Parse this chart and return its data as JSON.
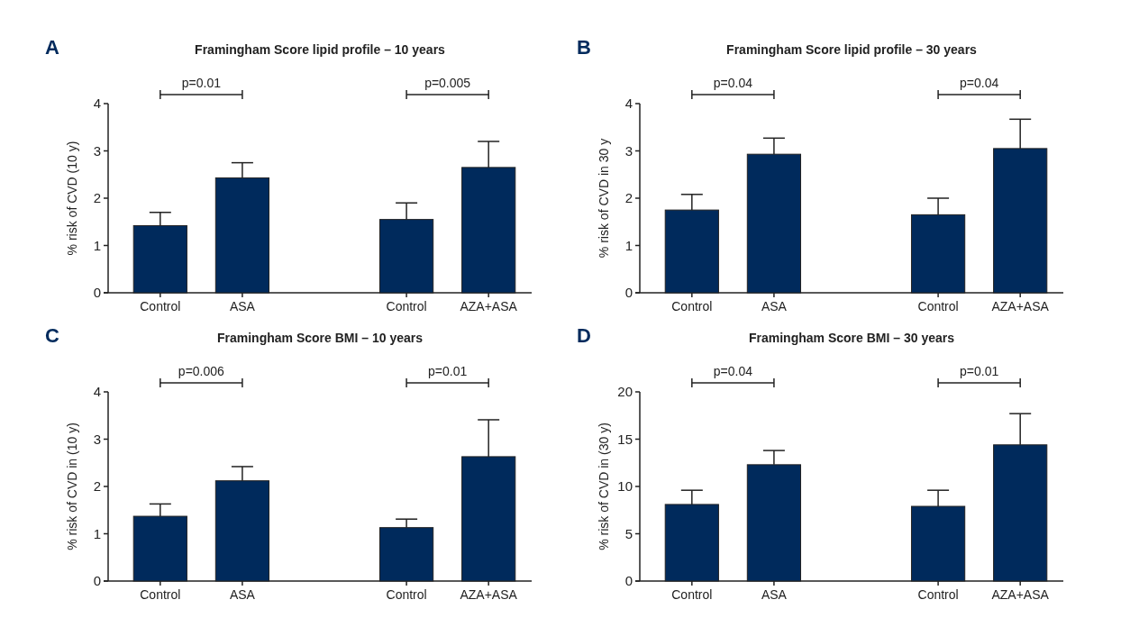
{
  "chart_data": [
    {
      "type": "bar",
      "title": "Framingham Score lipid profile – 10 years",
      "ylabel": "% risk of CVD (10 y)",
      "categories": [
        "Control",
        "ASA",
        null,
        "Control",
        "AZA+ASA"
      ],
      "values": [
        1.42,
        2.43,
        null,
        1.55,
        2.65
      ],
      "errors": [
        [
          1.42,
          1.7
        ],
        [
          2.43,
          2.75
        ],
        null,
        [
          1.55,
          1.9
        ],
        [
          2.65,
          3.2
        ]
      ],
      "color": "#002a5c",
      "ylim": [
        0,
        4
      ],
      "yticks": [
        0,
        1,
        2,
        3,
        4
      ],
      "annotations": [
        "A",
        "p=0.01",
        "p=0.005"
      ]
    },
    {
      "type": "bar",
      "title": "Framingham Score lipid profile – 30 years",
      "ylabel": "% risk of CVD in 30 y",
      "categories": [
        "Control",
        "ASA",
        null,
        "Control",
        "AZA+ASA"
      ],
      "values": [
        1.75,
        2.93,
        null,
        1.65,
        3.05
      ],
      "errors": [
        [
          1.75,
          2.08
        ],
        [
          2.93,
          3.27
        ],
        null,
        [
          1.65,
          2.0
        ],
        [
          3.05,
          3.67
        ]
      ],
      "color": "#002a5c",
      "ylim": [
        0,
        4
      ],
      "yticks": [
        0,
        1,
        2,
        3,
        4
      ],
      "annotations": [
        "B",
        "p=0.04",
        "p=0.04"
      ]
    },
    {
      "type": "bar",
      "title": "Framingham Score BMI – 10 years",
      "ylabel": "% risk of CVD in (10 y)",
      "categories": [
        "Control",
        "ASA",
        null,
        "Control",
        "AZA+ASA"
      ],
      "values": [
        1.37,
        2.12,
        null,
        1.13,
        2.63
      ],
      "errors": [
        [
          1.37,
          1.63
        ],
        [
          2.12,
          2.42
        ],
        null,
        [
          1.13,
          1.31
        ],
        [
          2.63,
          3.41
        ]
      ],
      "color": "#002a5c",
      "ylim": [
        0,
        4
      ],
      "yticks": [
        0,
        1,
        2,
        3,
        4
      ],
      "annotations": [
        "C",
        "p=0.006",
        "p=0.01"
      ]
    },
    {
      "type": "bar",
      "title": "Framingham Score BMI – 30 years",
      "ylabel": "% risk of CVD in (30 y)",
      "categories": [
        "Control",
        "ASA",
        null,
        "Control",
        "AZA+ASA"
      ],
      "values": [
        8.1,
        12.3,
        null,
        7.9,
        14.4
      ],
      "errors": [
        [
          8.1,
          9.6
        ],
        [
          12.3,
          13.8
        ],
        null,
        [
          7.9,
          9.6
        ],
        [
          14.4,
          17.7
        ]
      ],
      "color": "#002a5c",
      "ylim": [
        0,
        20
      ],
      "yticks": [
        0,
        5,
        10,
        15,
        20
      ],
      "annotations": [
        "D",
        "p=0.04",
        "p=0.01"
      ]
    }
  ]
}
